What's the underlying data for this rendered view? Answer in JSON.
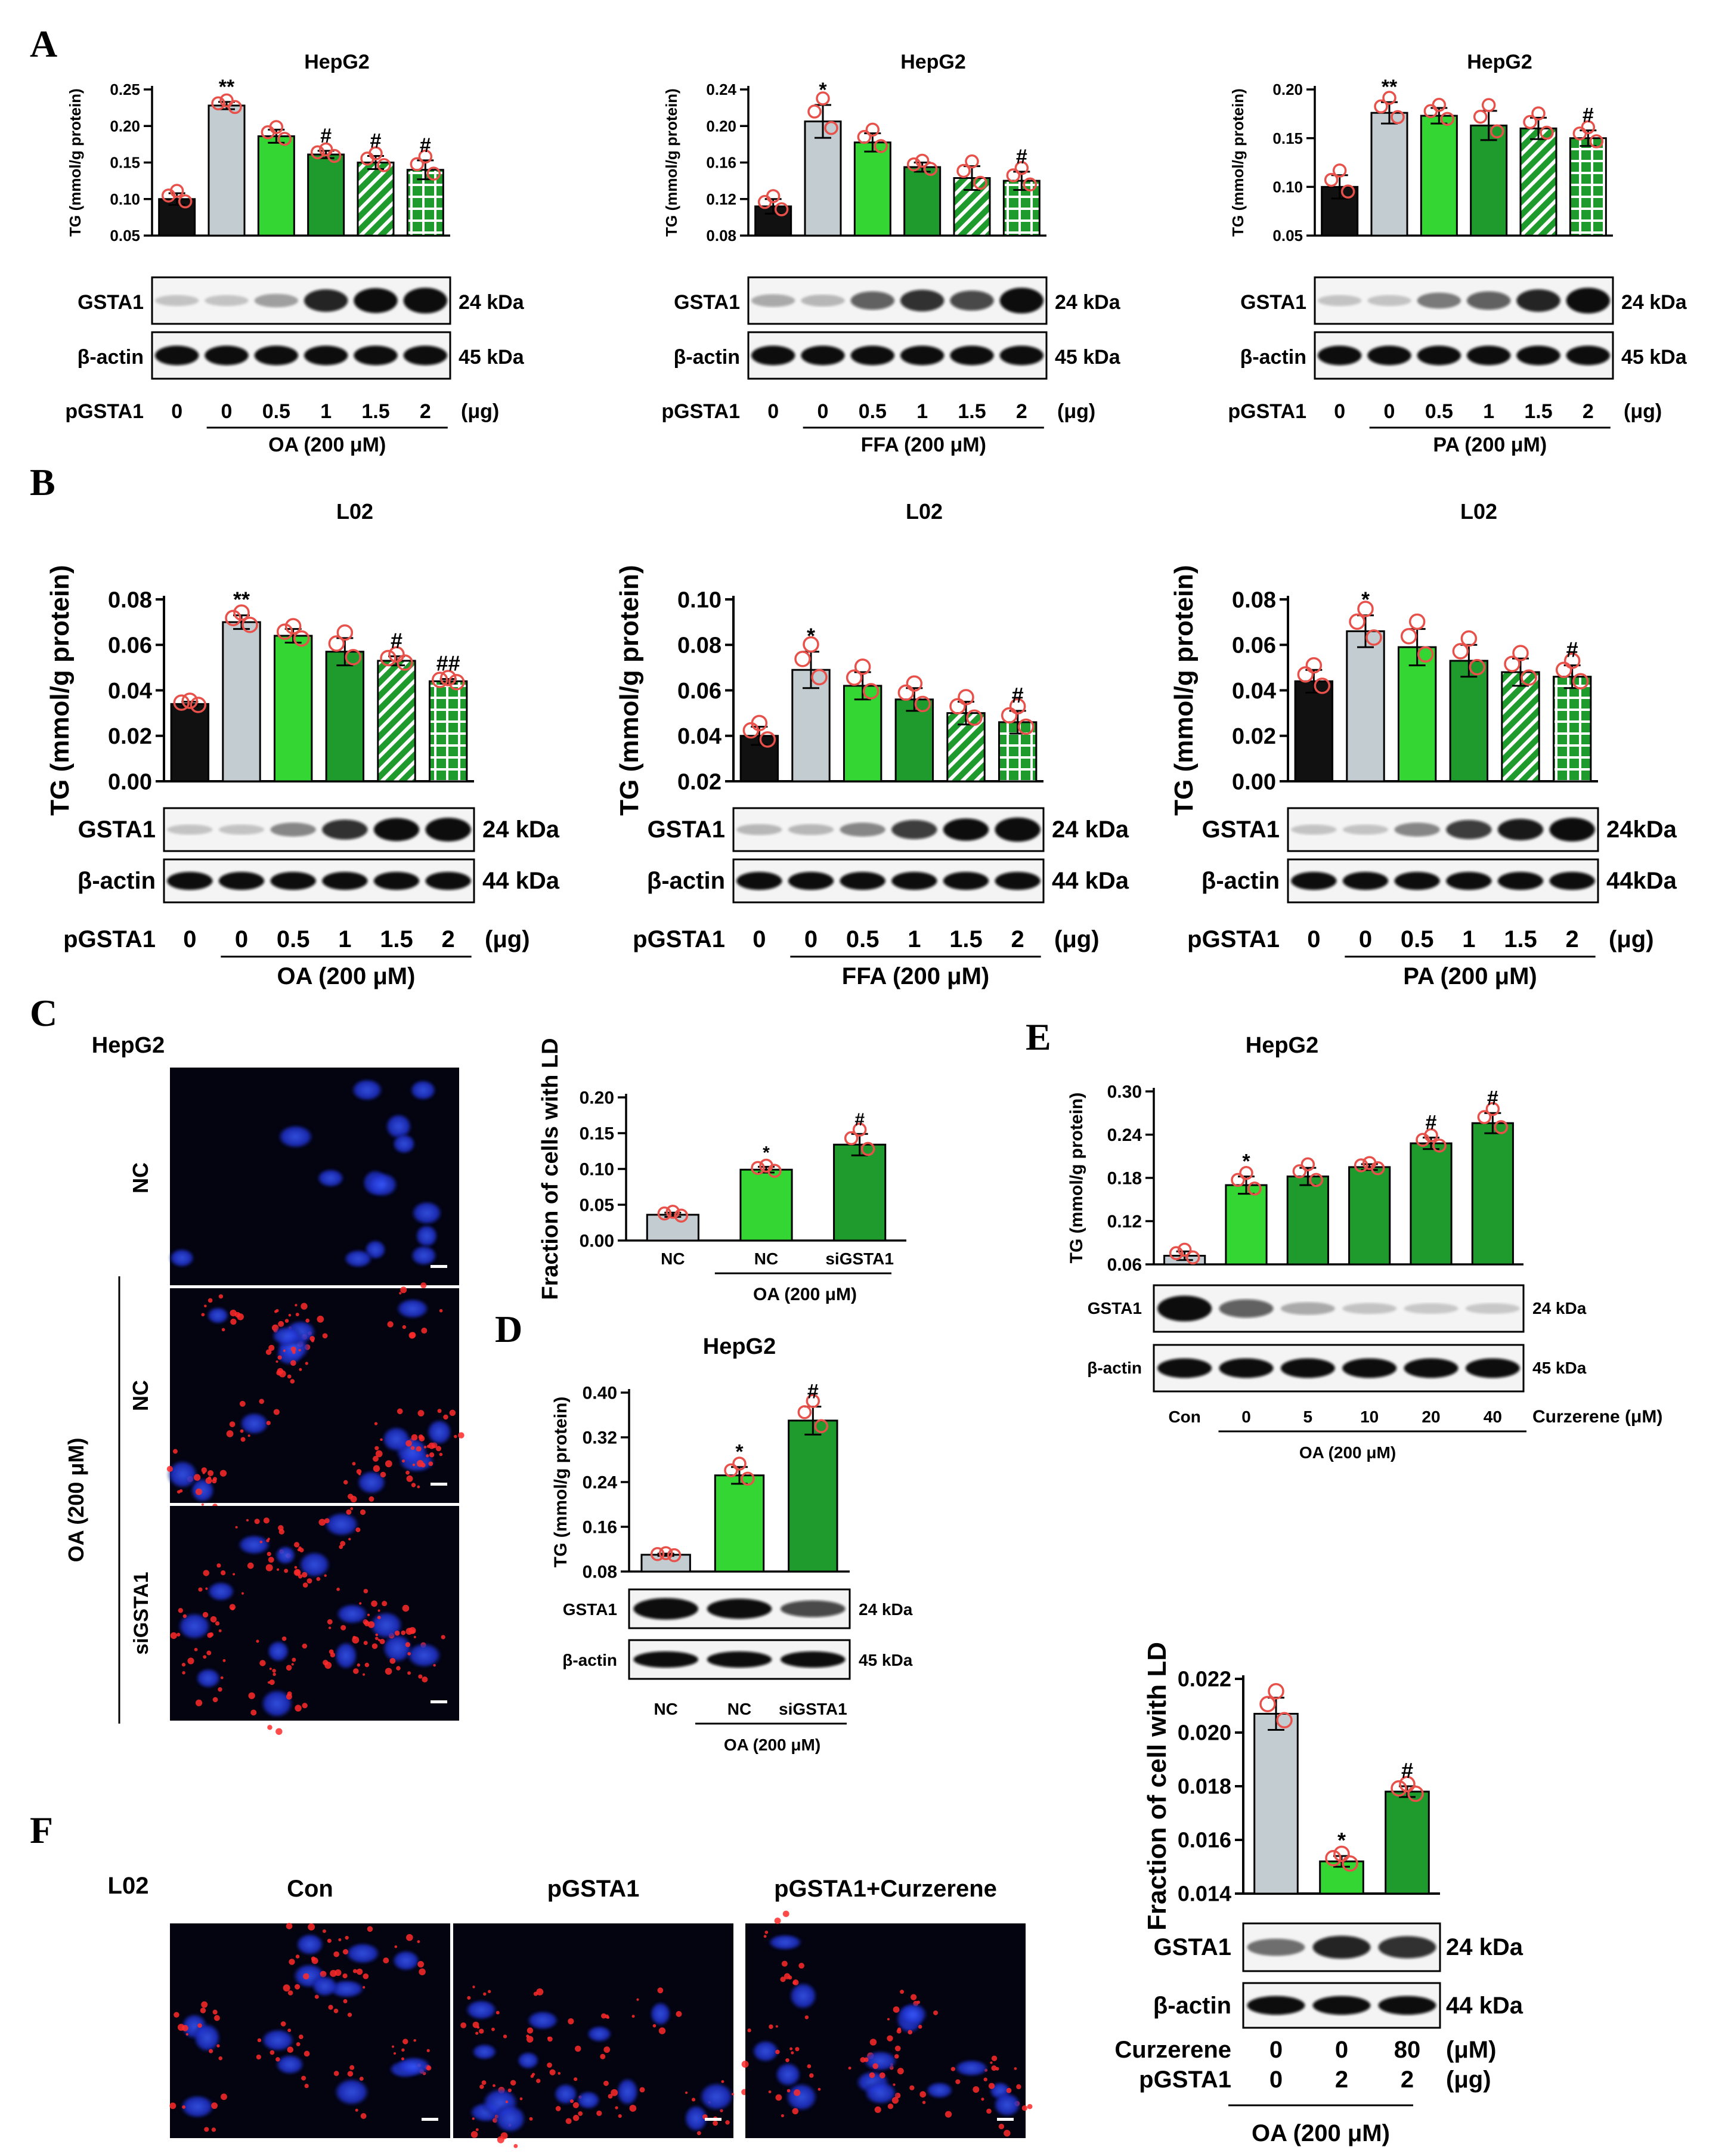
{
  "panels": {
    "A": {
      "letter": "A",
      "charts": [
        {
          "cell": "HepG2",
          "treatment": "OA (200 μM)",
          "ylabel": "TG (mmol/g protein)",
          "ymin": 0.05,
          "ymax": 0.25,
          "ticks": [
            "0.05",
            "0.10",
            "0.15",
            "0.20",
            "0.25"
          ],
          "values": [
            0.1,
            0.228,
            0.186,
            0.161,
            0.15,
            0.14
          ],
          "errors": [
            0.008,
            0.005,
            0.009,
            0.005,
            0.009,
            0.013
          ],
          "sig": [
            "",
            "**",
            "",
            "#",
            "#",
            "#"
          ],
          "blot_top": "GSTA1",
          "blot_top_kda": "24 kDa",
          "blot_bot": "β-actin",
          "blot_bot_kda": "45 kDa",
          "xrow_label": "pGSTA1",
          "doses": [
            "0",
            "0",
            "0.5",
            "1",
            "1.5",
            "2"
          ],
          "unit": "(μg)",
          "gsta1_intensity": [
            0.05,
            0.05,
            0.2,
            0.75,
            0.9,
            0.95
          ]
        },
        {
          "cell": "HepG2",
          "treatment": "FFA (200 μM)",
          "ylabel": "TG (mmol/g protein)",
          "ymin": 0.08,
          "ymax": 0.24,
          "ticks": [
            "0.08",
            "0.12",
            "0.16",
            "0.20",
            "0.24"
          ],
          "values": [
            0.112,
            0.205,
            0.182,
            0.155,
            0.143,
            0.14
          ],
          "errors": [
            0.008,
            0.018,
            0.01,
            0.005,
            0.013,
            0.01
          ],
          "sig": [
            "",
            "*",
            "",
            "",
            "",
            "#"
          ],
          "blot_top": "GSTA1",
          "blot_top_kda": "24 kDa",
          "blot_bot": "β-actin",
          "blot_bot_kda": "45 kDa",
          "xrow_label": "pGSTA1",
          "doses": [
            "0",
            "0",
            "0.5",
            "1",
            "1.5",
            "2"
          ],
          "unit": "(μg)",
          "gsta1_intensity": [
            0.15,
            0.1,
            0.5,
            0.7,
            0.6,
            0.95
          ]
        },
        {
          "cell": "HepG2",
          "treatment": "PA (200 μM)",
          "ylabel": "TG (mmol/g protein)",
          "ymin": 0.05,
          "ymax": 0.2,
          "ticks": [
            "0.05",
            "0.10",
            "0.15",
            "0.20"
          ],
          "values": [
            0.1,
            0.176,
            0.173,
            0.163,
            0.16,
            0.15
          ],
          "errors": [
            0.012,
            0.011,
            0.008,
            0.015,
            0.011,
            0.008
          ],
          "sig": [
            "",
            "**",
            "",
            "",
            "",
            "#"
          ],
          "blot_top": "GSTA1",
          "blot_top_kda": "24 kDa",
          "blot_bot": "β-actin",
          "blot_bot_kda": "45 kDa",
          "xrow_label": "pGSTA1",
          "doses": [
            "0",
            "0",
            "0.5",
            "1",
            "1.5",
            "2"
          ],
          "unit": "(μg)",
          "gsta1_intensity": [
            0.05,
            0.05,
            0.35,
            0.5,
            0.75,
            0.95
          ]
        }
      ]
    },
    "B": {
      "letter": "B",
      "charts": [
        {
          "cell": "L02",
          "treatment": "OA (200 μM)",
          "ylabel": "TG (mmol/g protein)",
          "ymin": 0.0,
          "ymax": 0.08,
          "ticks": [
            "0.00",
            "0.02",
            "0.04",
            "0.06",
            "0.08"
          ],
          "values": [
            0.034,
            0.07,
            0.064,
            0.057,
            0.053,
            0.044
          ],
          "errors": [
            0.001,
            0.003,
            0.003,
            0.006,
            0.002,
            0.001
          ],
          "sig": [
            "",
            "**",
            "",
            "",
            "#",
            "##"
          ],
          "blot_top": "GSTA1",
          "blot_top_kda": "24 kDa",
          "blot_bot": "β-actin",
          "blot_bot_kda": "44 kDa",
          "xrow_label": "pGSTA1",
          "doses": [
            "0",
            "0",
            "0.5",
            "1",
            "1.5",
            "2"
          ],
          "unit": "(μg)",
          "gsta1_intensity": [
            0.05,
            0.05,
            0.3,
            0.7,
            0.9,
            0.95
          ]
        },
        {
          "cell": "L02",
          "treatment": "FFA (200 μM)",
          "ylabel": "TG (mmol/g protein)",
          "ymin": 0.02,
          "ymax": 0.1,
          "ticks": [
            "0.02",
            "0.04",
            "0.06",
            "0.08",
            "0.10"
          ],
          "values": [
            0.04,
            0.069,
            0.062,
            0.056,
            0.05,
            0.046
          ],
          "errors": [
            0.004,
            0.008,
            0.006,
            0.005,
            0.005,
            0.005
          ],
          "sig": [
            "",
            "*",
            "",
            "",
            "",
            "#"
          ],
          "blot_top": "GSTA1",
          "blot_top_kda": "24 kDa",
          "blot_bot": "β-actin",
          "blot_bot_kda": "44 kDa",
          "xrow_label": "pGSTA1",
          "doses": [
            "0",
            "0",
            "0.5",
            "1",
            "1.5",
            "2"
          ],
          "unit": "(μg)",
          "gsta1_intensity": [
            0.1,
            0.1,
            0.3,
            0.65,
            0.85,
            0.98
          ]
        },
        {
          "cell": "L02",
          "treatment": "PA (200 μM)",
          "ylabel": "TG (mmol/g protein)",
          "ymin": 0.0,
          "ymax": 0.08,
          "ticks": [
            "0.00",
            "0.02",
            "0.04",
            "0.06",
            "0.08"
          ],
          "values": [
            0.044,
            0.066,
            0.059,
            0.053,
            0.048,
            0.046
          ],
          "errors": [
            0.005,
            0.007,
            0.008,
            0.007,
            0.006,
            0.005
          ],
          "sig": [
            "",
            "*",
            "",
            "",
            "",
            "#"
          ],
          "blot_top": "GSTA1",
          "blot_top_kda": "24kDa",
          "blot_bot": "β-actin",
          "blot_bot_kda": "44kDa",
          "xrow_label": "pGSTA1",
          "doses": [
            "0",
            "0",
            "0.5",
            "1",
            "1.5",
            "2"
          ],
          "unit": "(μg)",
          "gsta1_intensity": [
            0.05,
            0.05,
            0.3,
            0.65,
            0.8,
            0.95
          ]
        }
      ]
    },
    "C": {
      "letter": "C",
      "cell": "HepG2",
      "image_labels": [
        "NC",
        "NC",
        "siGSTA1"
      ],
      "group_label": "OA (200 μM)",
      "chart": {
        "ylabel": "Fraction of cells with LD",
        "ymin": 0.0,
        "ymax": 0.2,
        "ticks": [
          "0.00",
          "0.05",
          "0.10",
          "0.15",
          "0.20"
        ],
        "categories": [
          "NC",
          "NC",
          "siGSTA1"
        ],
        "values": [
          0.036,
          0.099,
          0.134
        ],
        "errors": [
          0.003,
          0.004,
          0.015
        ],
        "sig": [
          "",
          "*",
          "#"
        ],
        "treatment": "OA (200 μM)"
      }
    },
    "D": {
      "letter": "D",
      "cell": "HepG2",
      "chart": {
        "ylabel": "TG (mmol/g protein)",
        "ymin": 0.08,
        "ymax": 0.4,
        "ticks": [
          "0.08",
          "0.16",
          "0.24",
          "0.32",
          "0.40"
        ],
        "categories": [
          "NC",
          "NC",
          "siGSTA1"
        ],
        "values": [
          0.11,
          0.252,
          0.35
        ],
        "errors": [
          0.002,
          0.015,
          0.025
        ],
        "sig": [
          "",
          "*",
          "#"
        ],
        "treatment": "OA (200 μM)",
        "blot_top": "GSTA1",
        "blot_top_kda": "24  kDa",
        "blot_bot": "β-actin",
        "blot_bot_kda": "45  kDa",
        "gsta1_intensity": [
          0.95,
          0.85,
          0.6
        ]
      }
    },
    "E": {
      "letter": "E",
      "cell": "HepG2",
      "chart": {
        "ylabel": "TG (mmol/g protein)",
        "ymin": 0.06,
        "ymax": 0.3,
        "ticks": [
          "0.06",
          "0.12",
          "0.18",
          "0.24",
          "0.30"
        ],
        "values": [
          0.072,
          0.17,
          0.182,
          0.195,
          0.228,
          0.256
        ],
        "errors": [
          0.006,
          0.012,
          0.012,
          0.004,
          0.008,
          0.014
        ],
        "sig": [
          "",
          "*",
          "",
          "",
          "#",
          "#"
        ],
        "doses": [
          "Con",
          "0",
          "5",
          "10",
          "20",
          "40"
        ],
        "compound": "Curzerene",
        "unit": "(μM)",
        "treatment": "OA (200 μM)",
        "blot_top": "GSTA1",
        "blot_top_kda": "24  kDa",
        "blot_bot": "β-actin",
        "blot_bot_kda": "45  kDa",
        "gsta1_intensity": [
          0.95,
          0.5,
          0.15,
          0.05,
          0.03,
          0.03
        ]
      }
    },
    "F": {
      "letter": "F",
      "cell": "L02",
      "image_labels": [
        "Con",
        "pGSTA1",
        "pGSTA1+Curzerene"
      ],
      "chart": {
        "ylabel": "Fraction of cell with LD",
        "ymin": 0.014,
        "ymax": 0.022,
        "ticks": [
          "0.014",
          "0.016",
          "0.018",
          "0.020",
          "0.022"
        ],
        "values": [
          0.0207,
          0.0152,
          0.0178
        ],
        "errors": [
          0.0006,
          0.0002,
          0.0002
        ],
        "sig": [
          "",
          "*",
          "#"
        ],
        "rows": [
          {
            "label": "Curzerene",
            "vals": [
              "0",
              "0",
              "80"
            ],
            "unit": "(μM)"
          },
          {
            "label": "pGSTA1",
            "vals": [
              "0",
              "2",
              "2"
            ],
            "unit": "(μg)"
          }
        ],
        "treatment": "OA (200 μM)",
        "blot_top": "GSTA1",
        "blot_top_kda": "24 kDa",
        "blot_bot": "β-actin",
        "blot_bot_kda": "44 kDa",
        "gsta1_intensity": [
          0.4,
          0.75,
          0.7
        ]
      }
    }
  },
  "colors": {
    "black": "#111111",
    "grey": "#c3cdd1",
    "light_green": "#33d633",
    "green": "#1f9a2c",
    "dot": "#e8504a"
  }
}
